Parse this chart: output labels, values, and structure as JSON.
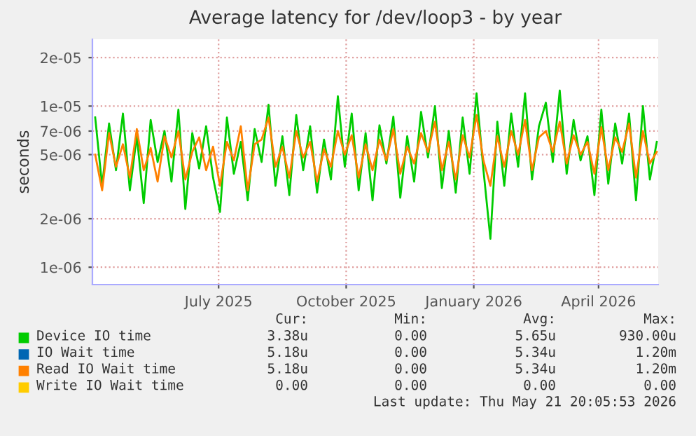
{
  "chart_data": {
    "type": "line",
    "title": "Average latency for /dev/loop3 - by year",
    "ylabel": "seconds",
    "log": "y",
    "grid": true,
    "legend": "bottom",
    "line_style": "solid",
    "marker": "none",
    "xlim": [
      "2025-04-01",
      "2026-05-14"
    ],
    "xticks": [
      {
        "value": "2025-07-01",
        "label": "July 2025"
      },
      {
        "value": "2025-10-01",
        "label": "October 2025"
      },
      {
        "value": "2026-01-01",
        "label": "January 2026"
      },
      {
        "value": "2026-04-01",
        "label": "April 2026"
      }
    ],
    "ylim": [
      7.8e-07,
      2.6e-05
    ],
    "yticks": [
      {
        "value": 1e-06,
        "label": "1e-06"
      },
      {
        "value": 2e-06,
        "label": "2e-06"
      },
      {
        "value": 5e-06,
        "label": "5e-06"
      },
      {
        "value": 7e-06,
        "label": "7e-06"
      },
      {
        "value": 1e-05,
        "label": "1e-05"
      },
      {
        "value": 2e-05,
        "label": "2e-05"
      }
    ],
    "x": [
      "2025-04-03",
      "2025-04-08",
      "2025-04-13",
      "2025-04-18",
      "2025-04-23",
      "2025-04-28",
      "2025-05-03",
      "2025-05-08",
      "2025-05-13",
      "2025-05-18",
      "2025-05-23",
      "2025-05-28",
      "2025-06-02",
      "2025-06-07",
      "2025-06-12",
      "2025-06-17",
      "2025-06-22",
      "2025-06-27",
      "2025-07-02",
      "2025-07-07",
      "2025-07-12",
      "2025-07-17",
      "2025-07-22",
      "2025-07-27",
      "2025-08-01",
      "2025-08-06",
      "2025-08-11",
      "2025-08-16",
      "2025-08-21",
      "2025-08-26",
      "2025-08-31",
      "2025-09-05",
      "2025-09-10",
      "2025-09-15",
      "2025-09-20",
      "2025-09-25",
      "2025-09-30",
      "2025-10-05",
      "2025-10-10",
      "2025-10-15",
      "2025-10-20",
      "2025-10-25",
      "2025-10-30",
      "2025-11-04",
      "2025-11-09",
      "2025-11-14",
      "2025-11-19",
      "2025-11-24",
      "2025-11-29",
      "2025-12-04",
      "2025-12-09",
      "2025-12-14",
      "2025-12-19",
      "2025-12-24",
      "2025-12-29",
      "2026-01-03",
      "2026-01-08",
      "2026-01-13",
      "2026-01-18",
      "2026-01-23",
      "2026-01-28",
      "2026-02-02",
      "2026-02-07",
      "2026-02-12",
      "2026-02-17",
      "2026-02-22",
      "2026-02-27",
      "2026-03-04",
      "2026-03-09",
      "2026-03-14",
      "2026-03-19",
      "2026-03-24",
      "2026-03-29",
      "2026-04-03",
      "2026-04-08",
      "2026-04-13",
      "2026-04-18",
      "2026-04-23",
      "2026-04-28",
      "2026-05-03",
      "2026-05-08",
      "2026-05-13"
    ],
    "series": [
      {
        "name": "Device IO time",
        "color": "#00cc00",
        "values": [
          8.5e-06,
          3.2e-06,
          7.8e-06,
          4e-06,
          9e-06,
          3e-06,
          6.5e-06,
          2.5e-06,
          8.2e-06,
          4.5e-06,
          7e-06,
          3.4e-06,
          9.5e-06,
          2.3e-06,
          6.8e-06,
          4.1e-06,
          7.5e-06,
          3.6e-06,
          2.2e-06,
          8.5e-06,
          3.8e-06,
          6e-06,
          2.6e-06,
          7.2e-06,
          4.5e-06,
          1.02e-05,
          3.2e-06,
          6.5e-06,
          2.8e-06,
          8.8e-06,
          4e-06,
          7.5e-06,
          2.9e-06,
          6.2e-06,
          3.5e-06,
          1.15e-05,
          4.2e-06,
          9e-06,
          3e-06,
          6.8e-06,
          2.6e-06,
          7.6e-06,
          4.4e-06,
          8.6e-06,
          2.7e-06,
          6.5e-06,
          3.4e-06,
          9.2e-06,
          4.8e-06,
          1e-05,
          3.1e-06,
          7e-06,
          2.9e-06,
          8.5e-06,
          3.8e-06,
          1.2e-05,
          4e-06,
          1.5e-06,
          8e-06,
          3.2e-06,
          9e-06,
          4.2e-06,
          1.2e-05,
          3.5e-06,
          7.5e-06,
          1.05e-05,
          4.5e-06,
          1.25e-05,
          3.8e-06,
          8.2e-06,
          4.6e-06,
          6.5e-06,
          2.8e-06,
          9.5e-06,
          3.3e-06,
          7.8e-06,
          4.4e-06,
          9e-06,
          2.6e-06,
          1e-05,
          3.5e-06,
          6e-06
        ]
      },
      {
        "name": "IO Wait time",
        "color": "#0066b3",
        "values": [
          null,
          null,
          null,
          null,
          null,
          null,
          null,
          null,
          null,
          null,
          null,
          null,
          null,
          null,
          null,
          null,
          null,
          null,
          null,
          null,
          null,
          null,
          null,
          null,
          null,
          null,
          null,
          null,
          null,
          null,
          null,
          null,
          null,
          null,
          null,
          null,
          null,
          null,
          null,
          null,
          null,
          null,
          null,
          null,
          null,
          null,
          null,
          null,
          null,
          null,
          null,
          null,
          null,
          null,
          null,
          null,
          null,
          null,
          null,
          null,
          null,
          null,
          null,
          null,
          null,
          null,
          null,
          null,
          null,
          null,
          null,
          null,
          null,
          null,
          null,
          null,
          null,
          null,
          null,
          null,
          null,
          null
        ]
      },
      {
        "name": "Read IO Wait time",
        "color": "#ff8000",
        "values": [
          5e-06,
          3e-06,
          6.8e-06,
          4.2e-06,
          5.8e-06,
          3.6e-06,
          7.2e-06,
          4e-06,
          5.5e-06,
          3.4e-06,
          6.5e-06,
          4.8e-06,
          7e-06,
          3.5e-06,
          5.2e-06,
          6.4e-06,
          4e-06,
          5.6e-06,
          3.2e-06,
          6e-06,
          4.6e-06,
          7.5e-06,
          3e-06,
          5.8e-06,
          6.2e-06,
          8.5e-06,
          4.2e-06,
          5.6e-06,
          3.6e-06,
          7e-06,
          4.8e-06,
          6e-06,
          3.4e-06,
          5.4e-06,
          4.2e-06,
          7e-06,
          5e-06,
          6.6e-06,
          3.6e-06,
          5.8e-06,
          4e-06,
          6.2e-06,
          4.6e-06,
          7.2e-06,
          3.8e-06,
          5.6e-06,
          4.4e-06,
          6.8e-06,
          5.2e-06,
          8e-06,
          4e-06,
          6e-06,
          3.5e-06,
          6.6e-06,
          4.8e-06,
          8.8e-06,
          4.6e-06,
          3.2e-06,
          6.5e-06,
          4.2e-06,
          7e-06,
          5e-06,
          8.2e-06,
          4e-06,
          6.4e-06,
          7e-06,
          5.2e-06,
          8e-06,
          4.4e-06,
          6.6e-06,
          5e-06,
          6e-06,
          3.8e-06,
          7.4e-06,
          4e-06,
          6.4e-06,
          5.2e-06,
          7.8e-06,
          3.6e-06,
          7e-06,
          4.4e-06,
          5.2e-06
        ]
      },
      {
        "name": "Write IO Wait time",
        "color": "#ffcc00",
        "values": [
          null,
          null,
          null,
          null,
          null,
          null,
          null,
          null,
          null,
          null,
          null,
          null,
          null,
          null,
          null,
          null,
          null,
          null,
          null,
          null,
          null,
          null,
          null,
          null,
          null,
          null,
          null,
          null,
          null,
          null,
          null,
          null,
          null,
          null,
          null,
          null,
          null,
          null,
          null,
          null,
          null,
          null,
          null,
          null,
          null,
          null,
          null,
          null,
          null,
          null,
          null,
          null,
          null,
          null,
          null,
          null,
          null,
          null,
          null,
          null,
          null,
          null,
          null,
          null,
          null,
          null,
          null,
          null,
          null,
          null,
          null,
          null,
          null,
          null,
          null,
          null,
          null,
          null,
          null,
          null,
          null,
          null
        ]
      }
    ],
    "annotations": [
      "Cur:",
      "Min:",
      "Avg:",
      "Max:",
      "3.38u",
      "0.00",
      "5.65u",
      "930.00u",
      "5.18u",
      "0.00",
      "5.34u",
      "1.20m",
      "5.18u",
      "0.00",
      "5.34u",
      "1.20m",
      "0.00",
      "0.00",
      "0.00",
      "0.00",
      "Last update: Thu May 21 20:05:53 2026"
    ]
  }
}
